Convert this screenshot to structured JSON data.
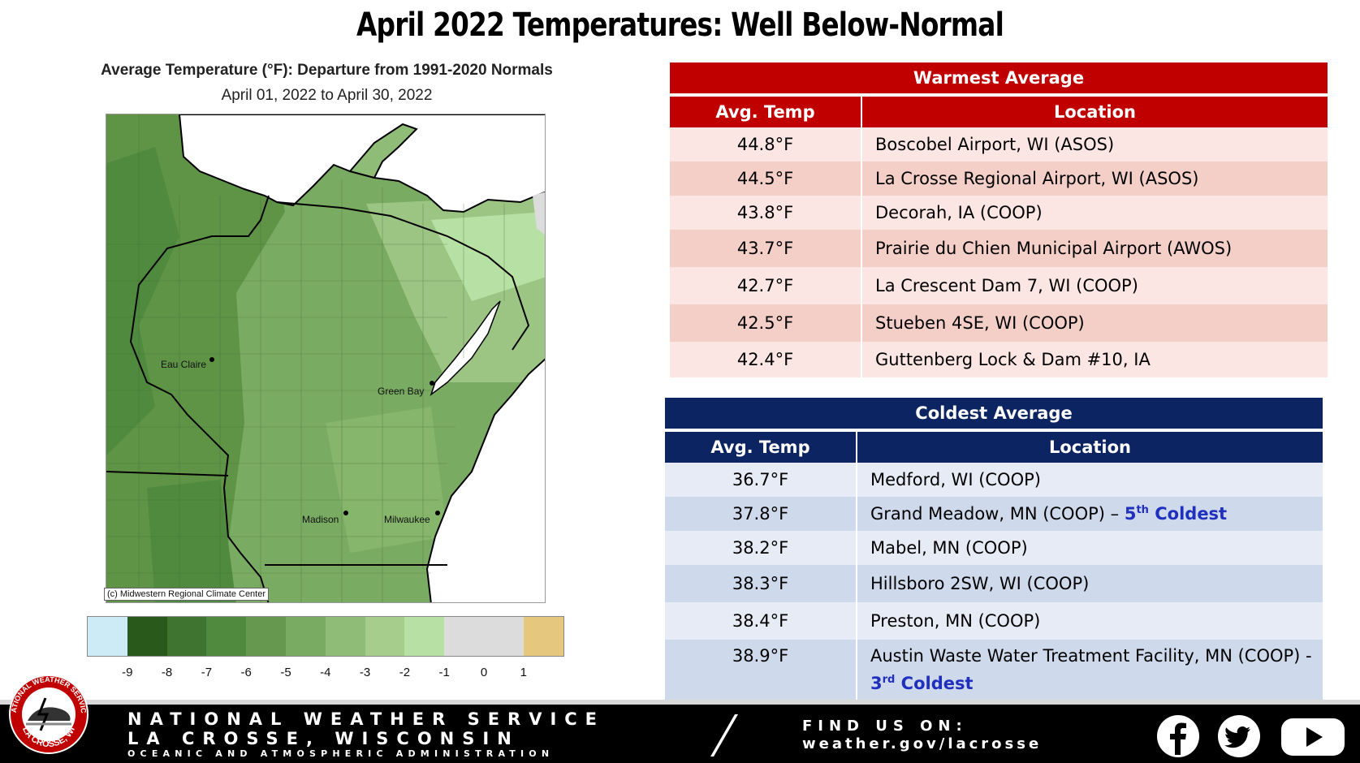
{
  "title": "April 2022 Temperatures: Well Below-Normal",
  "map": {
    "title": "Average Temperature (°F): Departure from 1991-2020 Normals",
    "subtitle": "April 01, 2022 to April 30, 2022",
    "credit": "(c) Midwestern Regional Climate Center",
    "cities": [
      {
        "name": "Eau Claire"
      },
      {
        "name": "Green Bay"
      },
      {
        "name": "Madison"
      },
      {
        "name": "Milwaukee"
      }
    ],
    "legend": {
      "colors": [
        "#cdeaf7",
        "#2a5a1b",
        "#3e7430",
        "#4f8a3f",
        "#66994f",
        "#7aab62",
        "#8fbc76",
        "#a6cd8c",
        "#b7e0a5",
        "#dcdcdc",
        "#dcdcdc",
        "#e6c77e"
      ],
      "ticks": [
        "-9",
        "-8",
        "-7",
        "-6",
        "-5",
        "-4",
        "-3",
        "-2",
        "-1",
        "0",
        "1"
      ]
    }
  },
  "warmest": {
    "title": "Warmest  Average",
    "col_temp": "Avg. Temp",
    "col_loc": "Location",
    "rows": [
      {
        "temp": "44.8°F",
        "location": "Boscobel Airport, WI (ASOS)"
      },
      {
        "temp": "44.5°F",
        "location": "La Crosse Regional Airport, WI (ASOS)"
      },
      {
        "temp": "43.8°F",
        "location": "Decorah, IA (COOP)"
      },
      {
        "temp": "43.7°F",
        "location": "Prairie du Chien Municipal Airport (AWOS)"
      },
      {
        "temp": "42.7°F",
        "location": "La Crescent Dam 7, WI (COOP)"
      },
      {
        "temp": "42.5°F",
        "location": "Stueben 4SE, WI (COOP)"
      },
      {
        "temp": "42.4°F",
        "location": "Guttenberg Lock & Dam #10, IA"
      }
    ]
  },
  "coldest": {
    "title": "Coldest Average",
    "col_temp": "Avg. Temp",
    "col_loc": "Location",
    "rows": [
      {
        "temp": "36.7°F",
        "location": "Medford, WI (COOP)",
        "note_pre": "",
        "note_num": "",
        "note_sup": "",
        "note_post": ""
      },
      {
        "temp": "37.8°F",
        "location": "Grand Meadow, MN (COOP) – ",
        "note_pre": "",
        "note_num": "5",
        "note_sup": "th",
        "note_post": " Coldest"
      },
      {
        "temp": "38.2°F",
        "location": "Mabel, MN (COOP)",
        "note_pre": "",
        "note_num": "",
        "note_sup": "",
        "note_post": ""
      },
      {
        "temp": "38.3°F",
        "location": "Hillsboro 2SW, WI (COOP)",
        "note_pre": "",
        "note_num": "",
        "note_sup": "",
        "note_post": ""
      },
      {
        "temp": "38.4°F",
        "location": "Preston, MN (COOP)",
        "note_pre": "",
        "note_num": "",
        "note_sup": "",
        "note_post": ""
      },
      {
        "temp": "38.9°F",
        "location": "Austin Waste Water Treatment Facility, MN (COOP) -",
        "note_pre": "",
        "note_num": "3",
        "note_sup": "rd",
        "note_post": " Coldest"
      }
    ]
  },
  "footer": {
    "line1": "NATIONAL WEATHER SERVICE",
    "line2": "LA CROSSE, WISCONSIN",
    "line3": "OCEANIC AND ATMOSPHERIC ADMINISTRATION",
    "find_label": "FIND US ON:",
    "find_url": "weather.gov/lacrosse",
    "logo_top": "NATIONAL WEATHER SERVICE",
    "logo_bottom": "LA CROSSE, WI",
    "social_icons": [
      "facebook-icon",
      "twitter-icon",
      "youtube-icon"
    ]
  }
}
